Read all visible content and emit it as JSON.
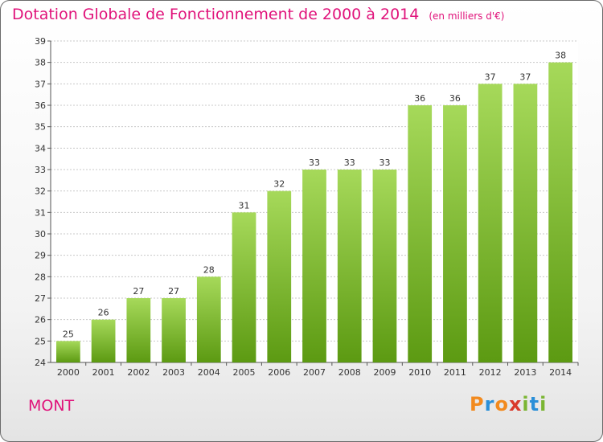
{
  "header": {
    "title": "Dotation Globale de Fonctionnement de 2000 à 2014",
    "subtitle": "(en milliers d'€)"
  },
  "footer": {
    "commune": "MONT",
    "brand": "Proxiti",
    "brand_colors": [
      "#f28a1e",
      "#2a8fd8",
      "#f28a1e",
      "#d9392b",
      "#7ab532",
      "#2a8fd8",
      "#7ab532"
    ]
  },
  "colors": {
    "title": "#e0127a",
    "bar_top": "#a6d95a",
    "bar_bottom": "#5c9a12",
    "grid": "#c8c8c8"
  },
  "chart_data": {
    "type": "bar",
    "categories": [
      "2000",
      "2001",
      "2002",
      "2003",
      "2004",
      "2005",
      "2006",
      "2007",
      "2008",
      "2009",
      "2010",
      "2011",
      "2012",
      "2013",
      "2014"
    ],
    "values": [
      25,
      26,
      27,
      27,
      28,
      31,
      32,
      33,
      33,
      33,
      36,
      36,
      37,
      37,
      38
    ],
    "ylim": [
      24,
      39
    ],
    "yticks": [
      24,
      25,
      26,
      27,
      28,
      29,
      30,
      31,
      32,
      33,
      34,
      35,
      36,
      37,
      38,
      39
    ],
    "grid": true,
    "data_labels": true
  }
}
